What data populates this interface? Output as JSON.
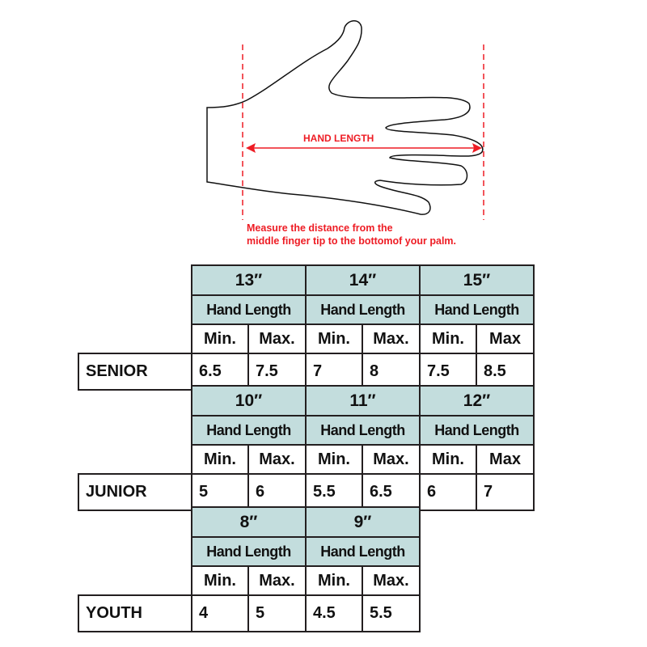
{
  "diagram": {
    "arrow_label": "HAND LENGTH",
    "instruction_line1": "Measure the distance from the",
    "instruction_line2": "middle finger tip to the bottomof your palm.",
    "accent_color": "#ee1c24",
    "header_color": "#c3dddd"
  },
  "groups": [
    {
      "label": "SENIOR",
      "sizes": [
        {
          "size": "13″",
          "header": "Hand Length",
          "min_label": "Min.",
          "max_label": "Max.",
          "min": "6.5",
          "max": "7.5"
        },
        {
          "size": "14″",
          "header": "Hand Length",
          "min_label": "Min.",
          "max_label": "Max.",
          "min": "7",
          "max": "8"
        },
        {
          "size": "15″",
          "header": "Hand Length",
          "min_label": "Min.",
          "max_label": "Max",
          "min": "7.5",
          "max": "8.5"
        }
      ]
    },
    {
      "label": "JUNIOR",
      "sizes": [
        {
          "size": "10″",
          "header": "Hand Length",
          "min_label": "Min.",
          "max_label": "Max.",
          "min": "5",
          "max": "6"
        },
        {
          "size": "11″",
          "header": "Hand Length",
          "min_label": "Min.",
          "max_label": "Max.",
          "min": "5.5",
          "max": "6.5"
        },
        {
          "size": "12″",
          "header": "Hand Length",
          "min_label": "Min.",
          "max_label": "Max",
          "min": "6",
          "max": "7"
        }
      ]
    },
    {
      "label": "YOUTH",
      "sizes": [
        {
          "size": "8″",
          "header": "Hand Length",
          "min_label": "Min.",
          "max_label": "Max.",
          "min": "4",
          "max": "5"
        },
        {
          "size": "9″",
          "header": "Hand Length",
          "min_label": "Min.",
          "max_label": "Max.",
          "min": "4.5",
          "max": "5.5"
        }
      ]
    }
  ]
}
